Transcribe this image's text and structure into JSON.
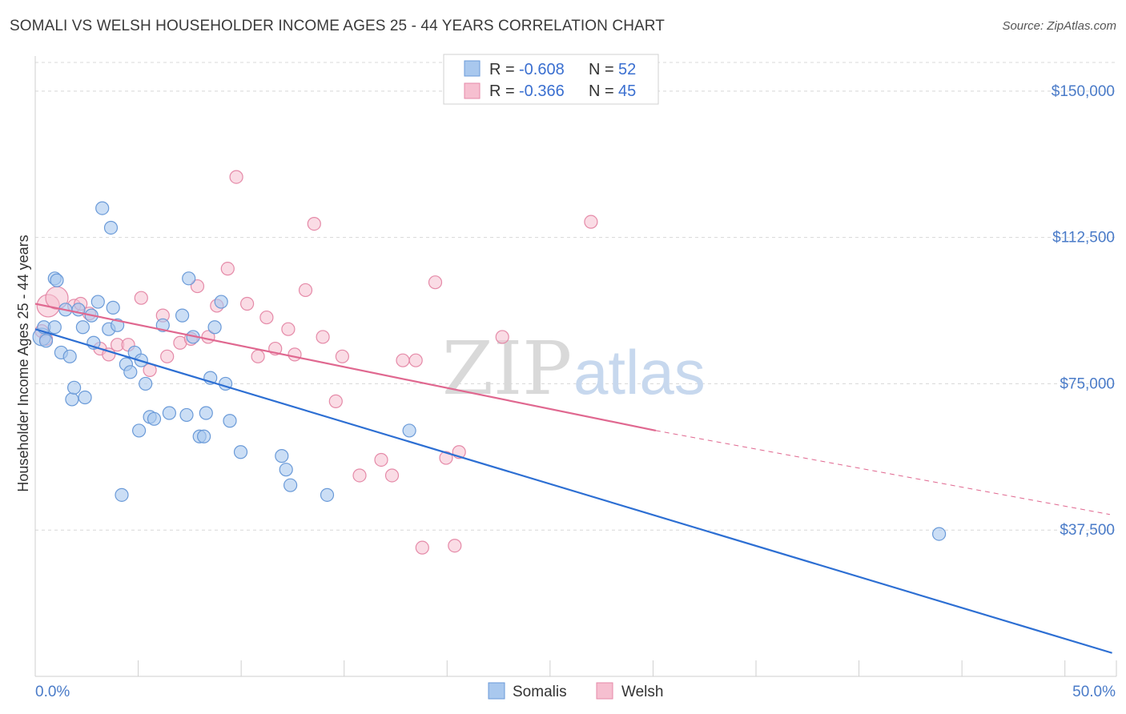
{
  "title": "SOMALI VS WELSH HOUSEHOLDER INCOME AGES 25 - 44 YEARS CORRELATION CHART",
  "source": "Source: ZipAtlas.com",
  "watermark": {
    "zip": "ZIP",
    "atlas": "atlas"
  },
  "colors": {
    "somali_fill": "#a9c8ee",
    "somali_stroke": "#6a9ad8",
    "somali_line": "#2d6fd3",
    "welsh_fill": "#f6bfd0",
    "welsh_stroke": "#e58aa8",
    "welsh_line": "#e06890",
    "grid": "#d8d8d8",
    "tick_label": "#4a7bc8"
  },
  "legend": {
    "rows": [
      {
        "r_label": "R =",
        "r_value": "-0.608",
        "n_label": "N =",
        "n_value": "52"
      },
      {
        "r_label": "R =",
        "r_value": "-0.366",
        "n_label": "N =",
        "n_value": "45"
      }
    ]
  },
  "chart_data": {
    "type": "scatter",
    "title": "SOMALI VS WELSH HOUSEHOLDER INCOME AGES 25 - 44 YEARS CORRELATION CHART",
    "xlabel": "",
    "ylabel": "Householder Income Ages 25 - 44 years",
    "xlim": [
      0,
      50
    ],
    "ylim": [
      0,
      155000
    ],
    "x_tick_labels": [
      "0.0%",
      "50.0%"
    ],
    "y_ticks": [
      37500,
      75000,
      112500,
      150000
    ],
    "y_tick_labels": [
      "$37,500",
      "$75,000",
      "$112,500",
      "$150,000"
    ],
    "grid": true,
    "legend_position": "top-center",
    "series": [
      {
        "name": "Somalis",
        "points": [
          [
            0.3,
            87000
          ],
          [
            0.4,
            89500
          ],
          [
            0.5,
            86000
          ],
          [
            0.9,
            102000
          ],
          [
            1.0,
            101500
          ],
          [
            0.9,
            89500
          ],
          [
            1.2,
            83000
          ],
          [
            1.4,
            94000
          ],
          [
            1.6,
            82000
          ],
          [
            1.7,
            71000
          ],
          [
            1.8,
            74000
          ],
          [
            2.0,
            94000
          ],
          [
            2.2,
            89500
          ],
          [
            2.3,
            71500
          ],
          [
            2.6,
            92500
          ],
          [
            2.7,
            85500
          ],
          [
            2.9,
            96000
          ],
          [
            3.1,
            120000
          ],
          [
            3.4,
            89000
          ],
          [
            3.5,
            115000
          ],
          [
            3.6,
            94500
          ],
          [
            3.8,
            90000
          ],
          [
            4.0,
            46500
          ],
          [
            4.2,
            80000
          ],
          [
            4.4,
            78000
          ],
          [
            4.6,
            83000
          ],
          [
            4.8,
            63000
          ],
          [
            4.9,
            81000
          ],
          [
            5.1,
            75000
          ],
          [
            5.3,
            66500
          ],
          [
            5.5,
            66000
          ],
          [
            5.9,
            90000
          ],
          [
            6.2,
            67500
          ],
          [
            6.8,
            92500
          ],
          [
            7.0,
            67000
          ],
          [
            7.1,
            102000
          ],
          [
            7.3,
            87000
          ],
          [
            7.6,
            61500
          ],
          [
            7.8,
            61500
          ],
          [
            7.9,
            67500
          ],
          [
            8.1,
            76500
          ],
          [
            8.3,
            89500
          ],
          [
            8.6,
            96000
          ],
          [
            8.8,
            75000
          ],
          [
            9.0,
            65500
          ],
          [
            9.5,
            57500
          ],
          [
            11.4,
            56500
          ],
          [
            11.6,
            53000
          ],
          [
            11.8,
            49000
          ],
          [
            13.5,
            46500
          ],
          [
            17.3,
            63000
          ],
          [
            41.8,
            36500
          ]
        ],
        "trend": {
          "x": [
            0,
            49.8
          ],
          "y": [
            89000,
            6000
          ]
        }
      },
      {
        "name": "Welsh",
        "points": [
          [
            0.3,
            88500
          ],
          [
            0.5,
            86500
          ],
          [
            0.6,
            95000
          ],
          [
            1.0,
            97000
          ],
          [
            1.8,
            95000
          ],
          [
            2.1,
            95500
          ],
          [
            2.5,
            93000
          ],
          [
            3.0,
            84000
          ],
          [
            3.4,
            82500
          ],
          [
            3.8,
            85000
          ],
          [
            4.3,
            85000
          ],
          [
            4.9,
            97000
          ],
          [
            5.3,
            78500
          ],
          [
            5.9,
            92500
          ],
          [
            6.1,
            82000
          ],
          [
            6.7,
            85500
          ],
          [
            7.2,
            86500
          ],
          [
            7.5,
            100000
          ],
          [
            8.0,
            87000
          ],
          [
            8.4,
            95000
          ],
          [
            8.9,
            104500
          ],
          [
            9.3,
            128000
          ],
          [
            9.8,
            95500
          ],
          [
            10.3,
            82000
          ],
          [
            10.7,
            92000
          ],
          [
            11.1,
            84000
          ],
          [
            11.7,
            89000
          ],
          [
            12.0,
            82500
          ],
          [
            12.5,
            99000
          ],
          [
            12.9,
            116000
          ],
          [
            13.3,
            87000
          ],
          [
            13.9,
            70500
          ],
          [
            14.2,
            82000
          ],
          [
            15.0,
            51500
          ],
          [
            16.0,
            55500
          ],
          [
            16.5,
            51500
          ],
          [
            17.0,
            81000
          ],
          [
            17.6,
            81000
          ],
          [
            17.9,
            33000
          ],
          [
            18.5,
            101000
          ],
          [
            19.0,
            56000
          ],
          [
            19.4,
            33500
          ],
          [
            19.6,
            57500
          ],
          [
            21.6,
            87000
          ],
          [
            25.7,
            116500
          ]
        ],
        "trend": {
          "x": [
            0,
            28.7
          ],
          "y": [
            95500,
            63000
          ]
        },
        "trend_extension": {
          "x": [
            28.7,
            49.7
          ],
          "y": [
            63000,
            41500
          ]
        }
      }
    ]
  },
  "bottom_legend": {
    "items": [
      "Somalis",
      "Welsh"
    ]
  }
}
